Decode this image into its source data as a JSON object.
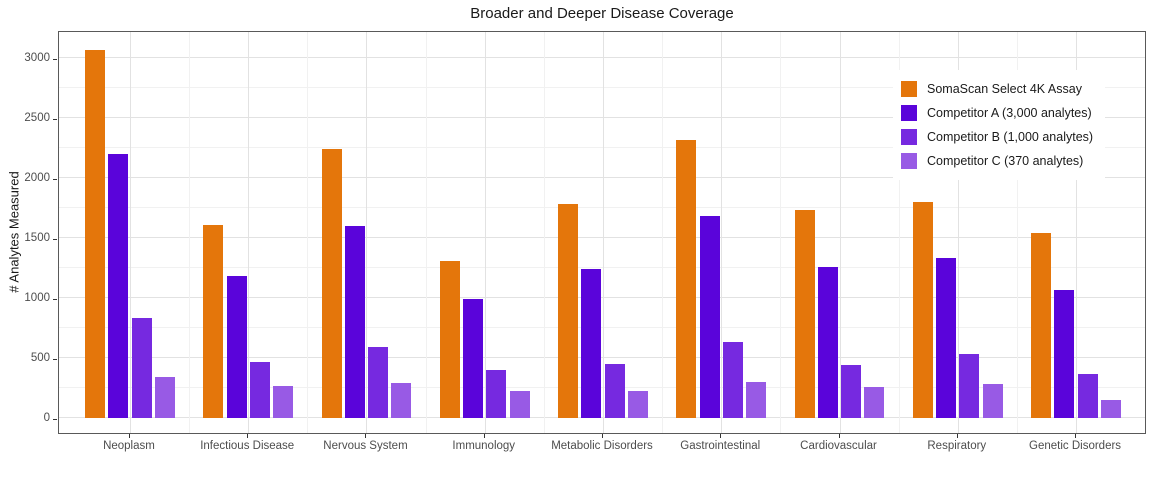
{
  "chart_data": {
    "type": "bar",
    "title": "Broader and Deeper Disease Coverage",
    "xlabel": "",
    "ylabel": "# Analytes Measured",
    "ylim": [
      0,
      3360
    ],
    "y_major_ticks": [
      0,
      500,
      1000,
      1500,
      2000,
      2500,
      3000
    ],
    "y_minor_ticks": [
      250,
      750,
      1250,
      1750,
      2250,
      2750
    ],
    "grid": "major and minor gridlines, light gray on white panel with gray border",
    "legend_position": "inside top-right, white background, no border",
    "categories": [
      "Neoplasm",
      "Infectious Disease",
      "Nervous System",
      "Immunology",
      "Metabolic Disorders",
      "Gastrointestinal",
      "Cardiovascular",
      "Respiratory",
      "Genetic Disorders"
    ],
    "series": [
      {
        "name": "SomaScan Select 4K Assay",
        "color": "#E4760B",
        "values": [
          3070,
          1610,
          2240,
          1310,
          1785,
          2320,
          1735,
          1800,
          1540
        ]
      },
      {
        "name": "Competitor A (3,000 analytes)",
        "color": "#5A04DA",
        "values": [
          2200,
          1185,
          1600,
          995,
          1245,
          1680,
          1255,
          1330,
          1070
        ]
      },
      {
        "name": "Competitor B (1,000 analytes)",
        "color": "#7629E0",
        "values": [
          830,
          470,
          590,
          400,
          450,
          630,
          440,
          530,
          370
        ]
      },
      {
        "name": "Competitor C (370 analytes)",
        "color": "#985AE5",
        "values": [
          340,
          265,
          290,
          225,
          225,
          300,
          260,
          280,
          150
        ]
      }
    ]
  }
}
